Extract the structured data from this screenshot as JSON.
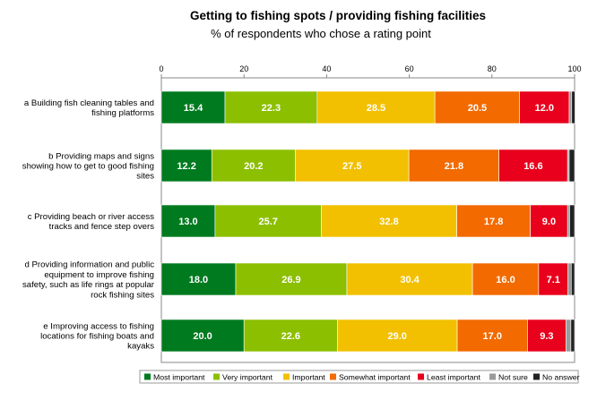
{
  "chart_data": {
    "type": "bar",
    "orientation": "horizontal",
    "stacked": true,
    "title": "Getting to fishing spots / providing fishing facilities",
    "subtitle": "% of respondents who chose a rating point",
    "xlim": [
      0,
      100
    ],
    "x_ticks": [
      "0",
      "20",
      "40",
      "60",
      "80",
      "100"
    ],
    "x_tick_values": [
      0,
      20,
      40,
      60,
      80,
      100
    ],
    "grid": false,
    "legend_position": "bottom",
    "categories": [
      [
        "a Building fish cleaning tables and",
        "fishing platforms"
      ],
      [
        "b Providing maps and signs",
        "showing how to get to good fishing",
        "sites"
      ],
      [
        "c Providing beach or river access",
        "tracks and fence step overs"
      ],
      [
        "d Providing information and public",
        "equipment to improve fishing",
        "safety, such as life rings at popular",
        "rock fishing sites"
      ],
      [
        "e Improving access to fishing",
        "locations for fishing boats and",
        "kayaks"
      ]
    ],
    "series": [
      {
        "name": "Most important",
        "color": "#007a1f",
        "values": [
          15.4,
          12.2,
          13.0,
          18.0,
          20.0
        ],
        "labels": [
          "15.4",
          "12.2",
          "13.0",
          "18.0",
          "20.0"
        ]
      },
      {
        "name": "Very important",
        "color": "#8cbf00",
        "values": [
          22.3,
          20.2,
          25.7,
          26.9,
          22.6
        ],
        "labels": [
          "22.3",
          "20.2",
          "25.7",
          "26.9",
          "22.6"
        ]
      },
      {
        "name": "Important",
        "color": "#f2c000",
        "values": [
          28.5,
          27.5,
          32.8,
          30.4,
          29.0
        ],
        "labels": [
          "28.5",
          "27.5",
          "32.8",
          "30.4",
          "29.0"
        ]
      },
      {
        "name": "Somewhat important",
        "color": "#f26a00",
        "values": [
          20.5,
          21.8,
          17.8,
          16.0,
          17.0
        ],
        "labels": [
          "20.5",
          "21.8",
          "17.8",
          "16.0",
          "17.0"
        ]
      },
      {
        "name": "Least important",
        "color": "#e8001c",
        "values": [
          12.0,
          16.6,
          9.0,
          7.1,
          9.3
        ],
        "labels": [
          "12.0",
          "16.6",
          "9.0",
          "7.1",
          "9.3"
        ]
      },
      {
        "name": "Not sure",
        "color": "#9a9a9a",
        "values": [
          0.6,
          0.4,
          0.5,
          0.8,
          1.2
        ],
        "labels": [
          "",
          "",
          "",
          "",
          ""
        ]
      },
      {
        "name": "No answer",
        "color": "#222222",
        "values": [
          0.8,
          1.3,
          1.2,
          0.8,
          0.9
        ],
        "labels": [
          "",
          "",
          "",
          "",
          ""
        ]
      }
    ]
  }
}
